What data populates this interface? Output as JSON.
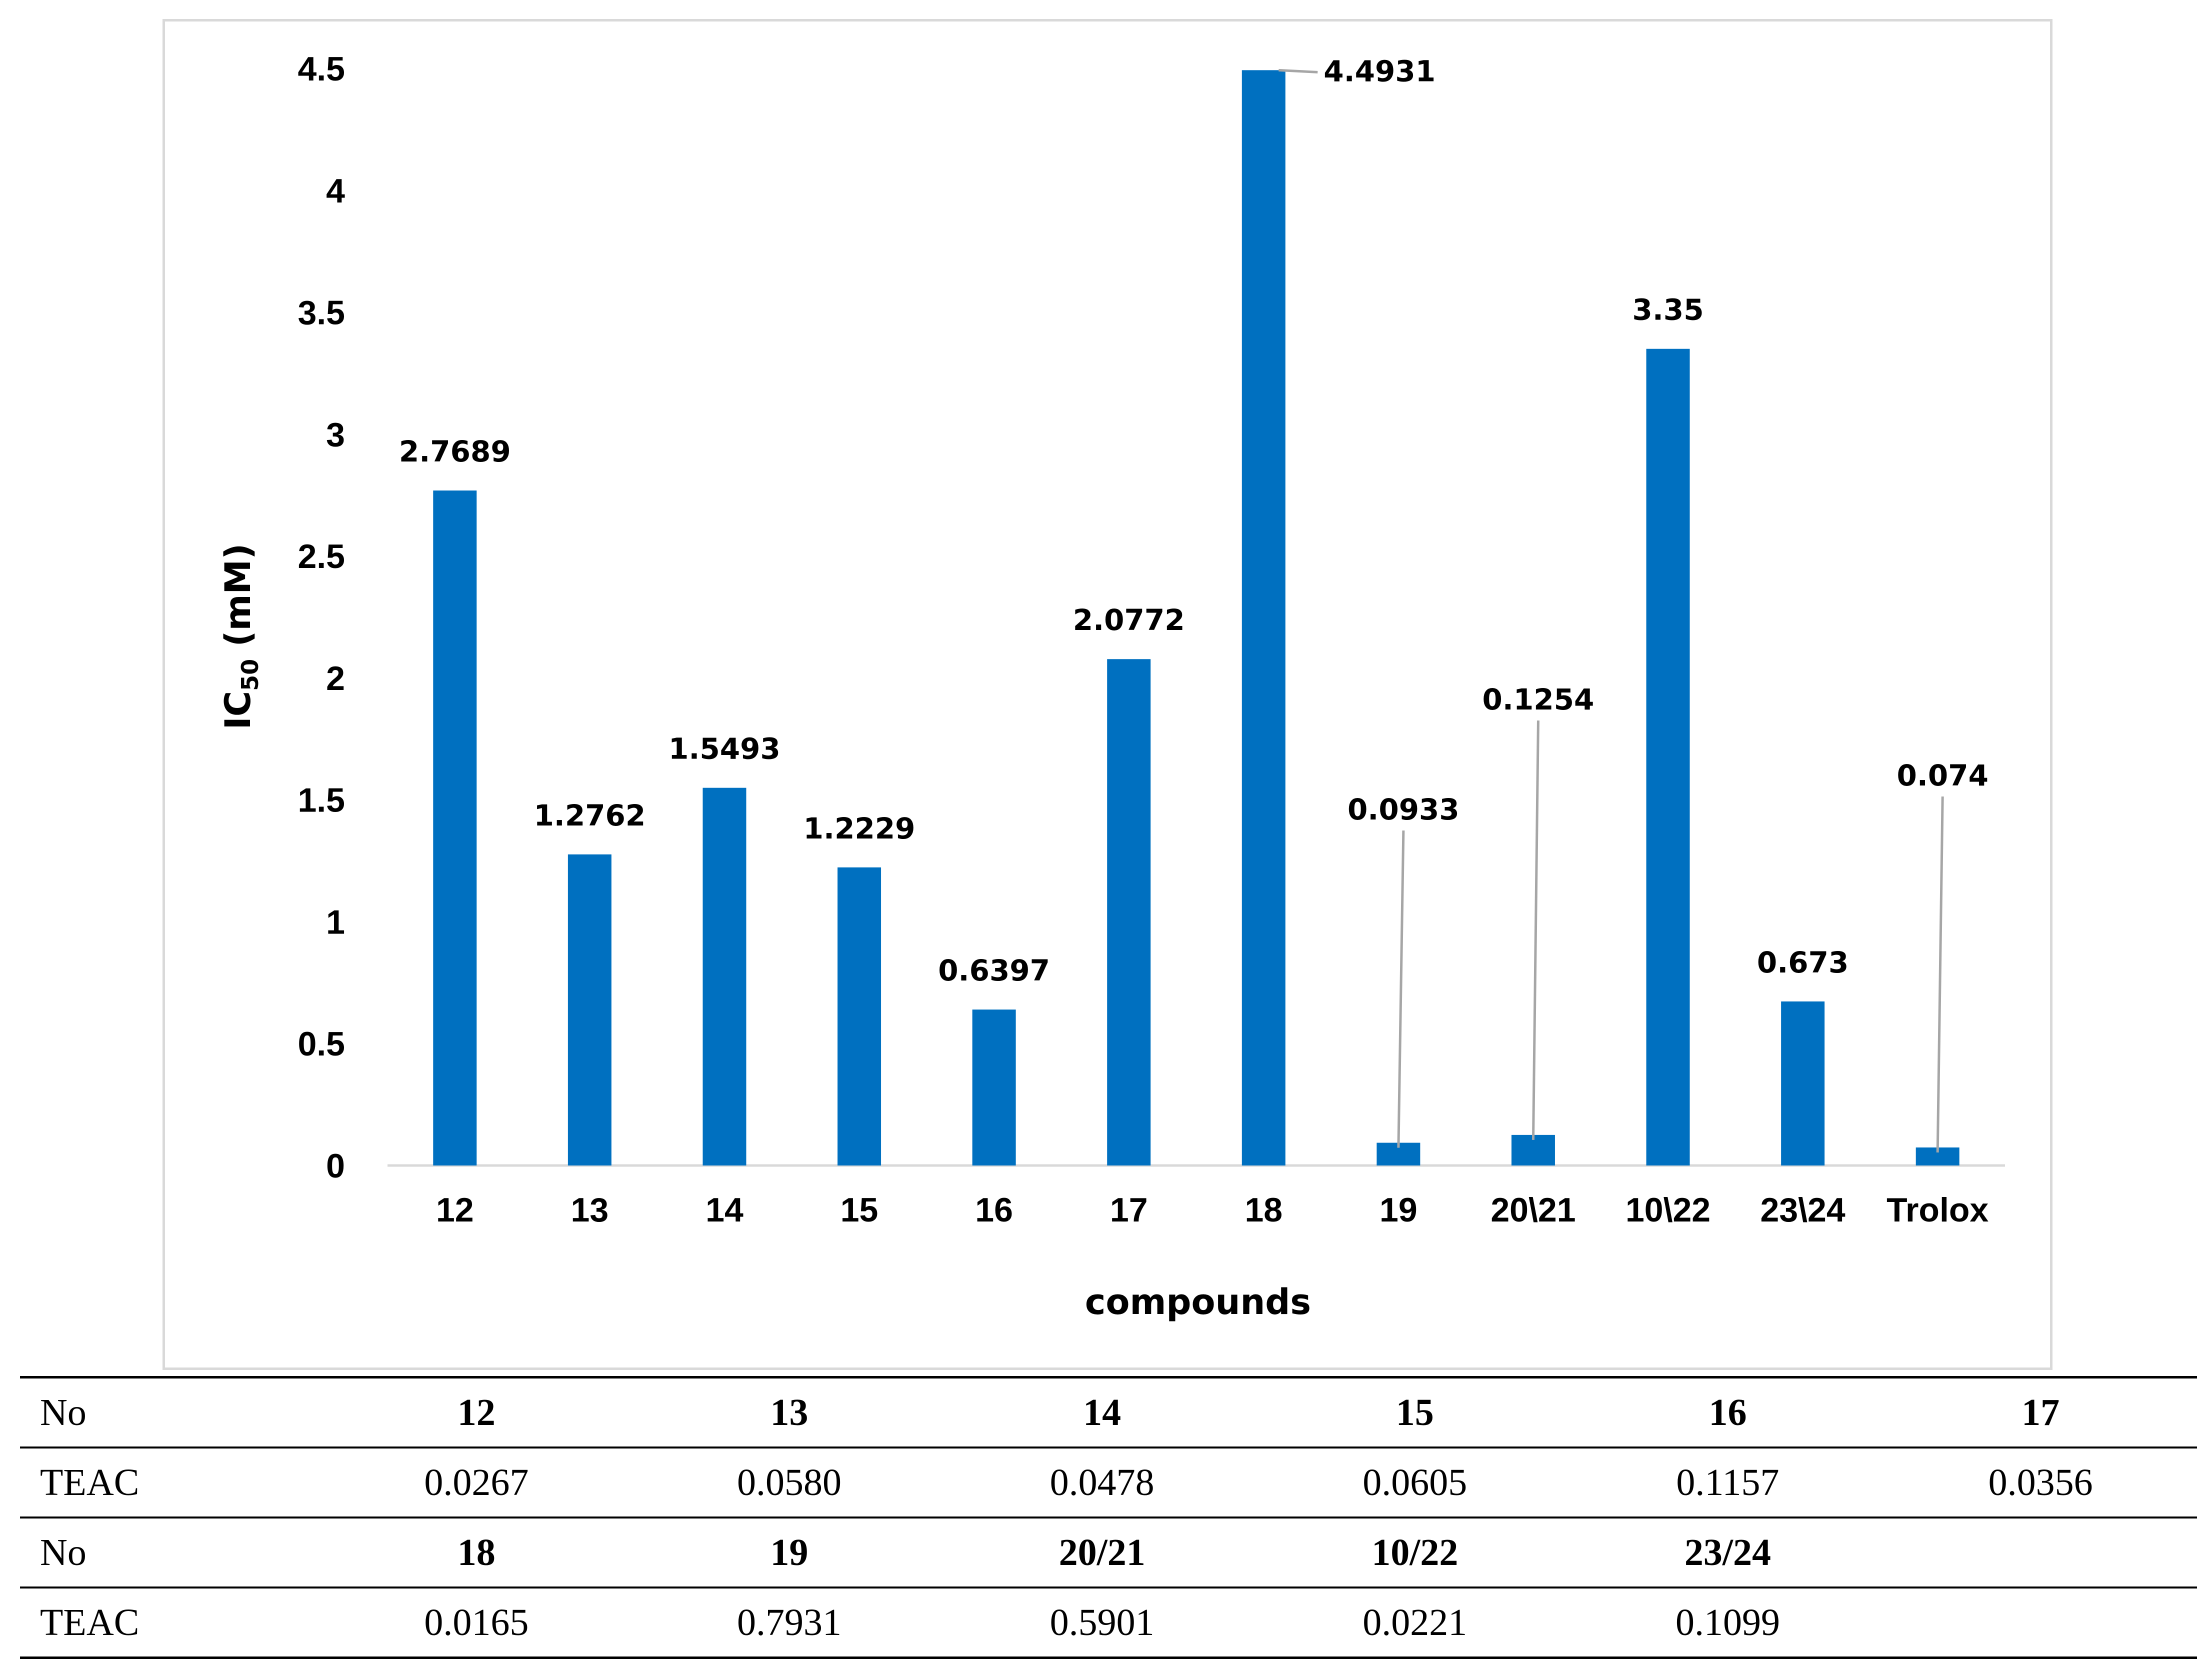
{
  "chart_data": {
    "type": "bar",
    "categories": [
      "12",
      "13",
      "14",
      "15",
      "16",
      "17",
      "18",
      "19",
      "20\\21",
      "10\\22",
      "23\\24",
      "Trolox"
    ],
    "values": [
      2.7689,
      1.2762,
      1.5493,
      1.2229,
      0.6397,
      2.0772,
      4.4931,
      0.0933,
      0.1254,
      3.35,
      0.673,
      0.074
    ],
    "labels": [
      "2.7689",
      "1.2762",
      "1.5493",
      "1.2229",
      "0.6397",
      "2.0772",
      "4.4931",
      "0.0933",
      "0.1254",
      "3.35",
      "0.673",
      "0.074"
    ],
    "title": "",
    "xlabel": "compounds",
    "ylabel_main": "IC",
    "ylabel_sub": "50",
    "ylabel_unit": " (mM)",
    "ylim": [
      0,
      4.5
    ],
    "yticks": [
      "0",
      "0.5",
      "1",
      "1.5",
      "2",
      "2.5",
      "3",
      "3.5",
      "4",
      "4.5"
    ],
    "bar_color": "#0070c0",
    "leader_color": "#a6a6a6",
    "grid": false
  },
  "table": {
    "rows": [
      {
        "head": "No",
        "bold": true,
        "cells": [
          "12",
          "13",
          "14",
          "15",
          "16",
          "17"
        ]
      },
      {
        "head": "TEAC",
        "bold": false,
        "cells": [
          "0.0267",
          "0.0580",
          "0.0478",
          "0.0605",
          "0.1157",
          "0.0356"
        ]
      },
      {
        "head": "No",
        "bold": true,
        "cells": [
          "18",
          "19",
          "20/21",
          "10/22",
          "23/24",
          ""
        ]
      },
      {
        "head": "TEAC",
        "bold": false,
        "cells": [
          "0.0165",
          "0.7931",
          "0.5901",
          "0.0221",
          "0.1099",
          ""
        ]
      }
    ]
  }
}
